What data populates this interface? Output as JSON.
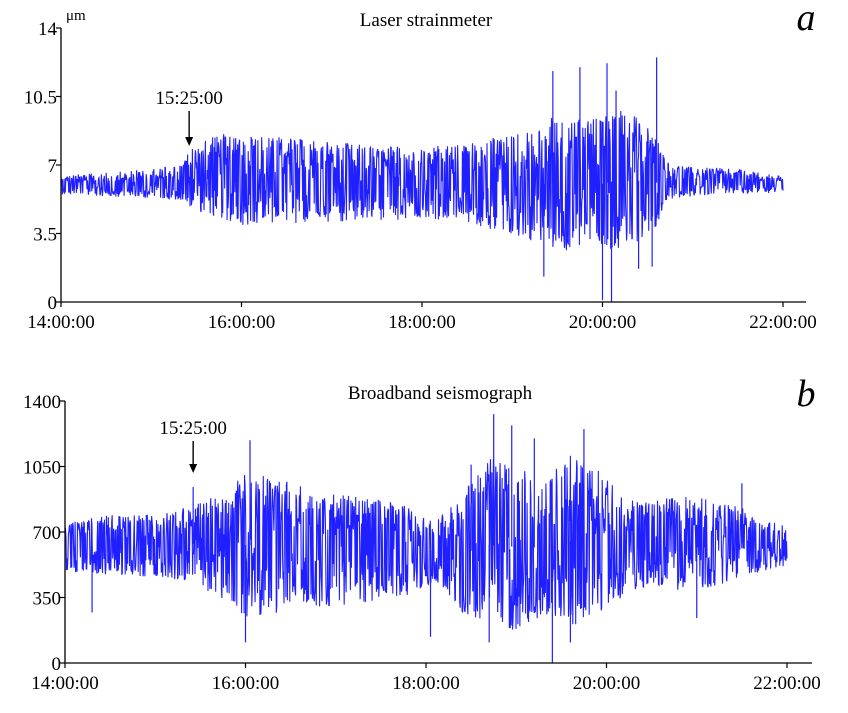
{
  "chart_data": [
    {
      "type": "line",
      "title": "Laser strainmeter",
      "panel_label": "a",
      "ylabel": "μm",
      "ylim": [
        0,
        14
      ],
      "yticks": [
        "0",
        "3.5",
        "7",
        "10.5",
        "14"
      ],
      "ytick_values": [
        0,
        3.5,
        7,
        10.5,
        14
      ],
      "xlim_hours": [
        14,
        22
      ],
      "xticks": [
        "14:00:00",
        "16:00:00",
        "18:00:00",
        "20:00:00",
        "22:00:00"
      ],
      "xtick_hours": [
        14,
        16,
        18,
        20,
        22
      ],
      "annotation": {
        "text": "15:25:00",
        "x_hours": 15.42
      },
      "color": "#1f1fff",
      "series": [
        {
          "envelope": {
            "x_hours": [
              14.0,
              14.5,
              15.0,
              15.3,
              15.42,
              15.6,
              15.8,
              16.0,
              16.5,
              17.0,
              17.5,
              18.0,
              18.5,
              19.0,
              19.3,
              19.5,
              19.8,
              20.0,
              20.2,
              20.4,
              20.5,
              20.6,
              20.7,
              20.8,
              21.0,
              21.5,
              22.0
            ],
            "upper": [
              6.5,
              6.6,
              6.8,
              7.0,
              7.8,
              8.3,
              8.6,
              8.6,
              8.4,
              8.2,
              8.0,
              7.9,
              8.1,
              8.6,
              9.0,
              9.6,
              9.4,
              9.6,
              9.8,
              9.4,
              9.0,
              8.4,
              7.2,
              7.0,
              6.9,
              6.8,
              6.4
            ],
            "lower": [
              5.5,
              5.4,
              5.3,
              5.2,
              4.8,
              4.5,
              4.2,
              3.9,
              4.0,
              4.1,
              4.1,
              4.3,
              4.0,
              3.4,
              3.0,
              2.6,
              2.7,
              2.5,
              2.7,
              3.0,
              3.3,
              3.8,
              5.2,
              5.3,
              5.4,
              5.5,
              5.6
            ]
          },
          "peaks": [
            {
              "x_hours": 19.45,
              "value": 11.8
            },
            {
              "x_hours": 19.75,
              "value": 12.0
            },
            {
              "x_hours": 20.05,
              "value": 12.2
            },
            {
              "x_hours": 20.15,
              "value": 10.8
            },
            {
              "x_hours": 20.6,
              "value": 12.5
            },
            {
              "x_hours": 19.35,
              "value": 1.3
            },
            {
              "x_hours": 20.0,
              "value": 0.1
            },
            {
              "x_hours": 20.1,
              "value": 0.0
            },
            {
              "x_hours": 20.4,
              "value": 1.7
            },
            {
              "x_hours": 20.55,
              "value": 1.8
            }
          ]
        }
      ]
    },
    {
      "type": "line",
      "title": "Broadband seismograph",
      "panel_label": "b",
      "ylabel": "",
      "ylim": [
        0,
        1400
      ],
      "yticks": [
        "0",
        "350",
        "700",
        "1050",
        "1400"
      ],
      "ytick_values": [
        0,
        350,
        700,
        1050,
        1400
      ],
      "xlim_hours": [
        14,
        22
      ],
      "xticks": [
        "14:00:00",
        "16:00:00",
        "18:00:00",
        "20:00:00",
        "22:00:00"
      ],
      "xtick_hours": [
        14,
        16,
        18,
        20,
        22
      ],
      "annotation": {
        "text": "15:25:00",
        "x_hours": 15.42
      },
      "color": "#1f1fff",
      "series": [
        {
          "envelope": {
            "x_hours": [
              14.0,
              14.5,
              15.0,
              15.42,
              15.8,
              16.0,
              16.3,
              16.6,
              17.0,
              17.4,
              17.8,
              18.1,
              18.4,
              18.7,
              19.0,
              19.3,
              19.6,
              19.9,
              20.2,
              20.5,
              20.8,
              21.1,
              21.5,
              21.8,
              22.0
            ],
            "upper": [
              770,
              790,
              800,
              840,
              930,
              1020,
              990,
              950,
              900,
              880,
              840,
              760,
              900,
              1100,
              1060,
              990,
              1120,
              1050,
              880,
              860,
              900,
              880,
              830,
              760,
              740
            ],
            "lower": [
              490,
              470,
              460,
              430,
              310,
              240,
              260,
              290,
              300,
              330,
              350,
              440,
              270,
              160,
              180,
              240,
              180,
              260,
              360,
              420,
              390,
              400,
              450,
              500,
              520
            ]
          },
          "peaks": [
            {
              "x_hours": 15.42,
              "value": 940
            },
            {
              "x_hours": 16.05,
              "value": 1190
            },
            {
              "x_hours": 18.5,
              "value": 1060
            },
            {
              "x_hours": 18.75,
              "value": 1330
            },
            {
              "x_hours": 18.95,
              "value": 1270
            },
            {
              "x_hours": 19.2,
              "value": 1200
            },
            {
              "x_hours": 19.75,
              "value": 1250
            },
            {
              "x_hours": 21.5,
              "value": 960
            },
            {
              "x_hours": 14.3,
              "value": 270
            },
            {
              "x_hours": 16.0,
              "value": 110
            },
            {
              "x_hours": 18.05,
              "value": 140
            },
            {
              "x_hours": 18.7,
              "value": 110
            },
            {
              "x_hours": 19.4,
              "value": 0
            },
            {
              "x_hours": 19.6,
              "value": 110
            },
            {
              "x_hours": 21.0,
              "value": 240
            }
          ]
        }
      ]
    }
  ]
}
